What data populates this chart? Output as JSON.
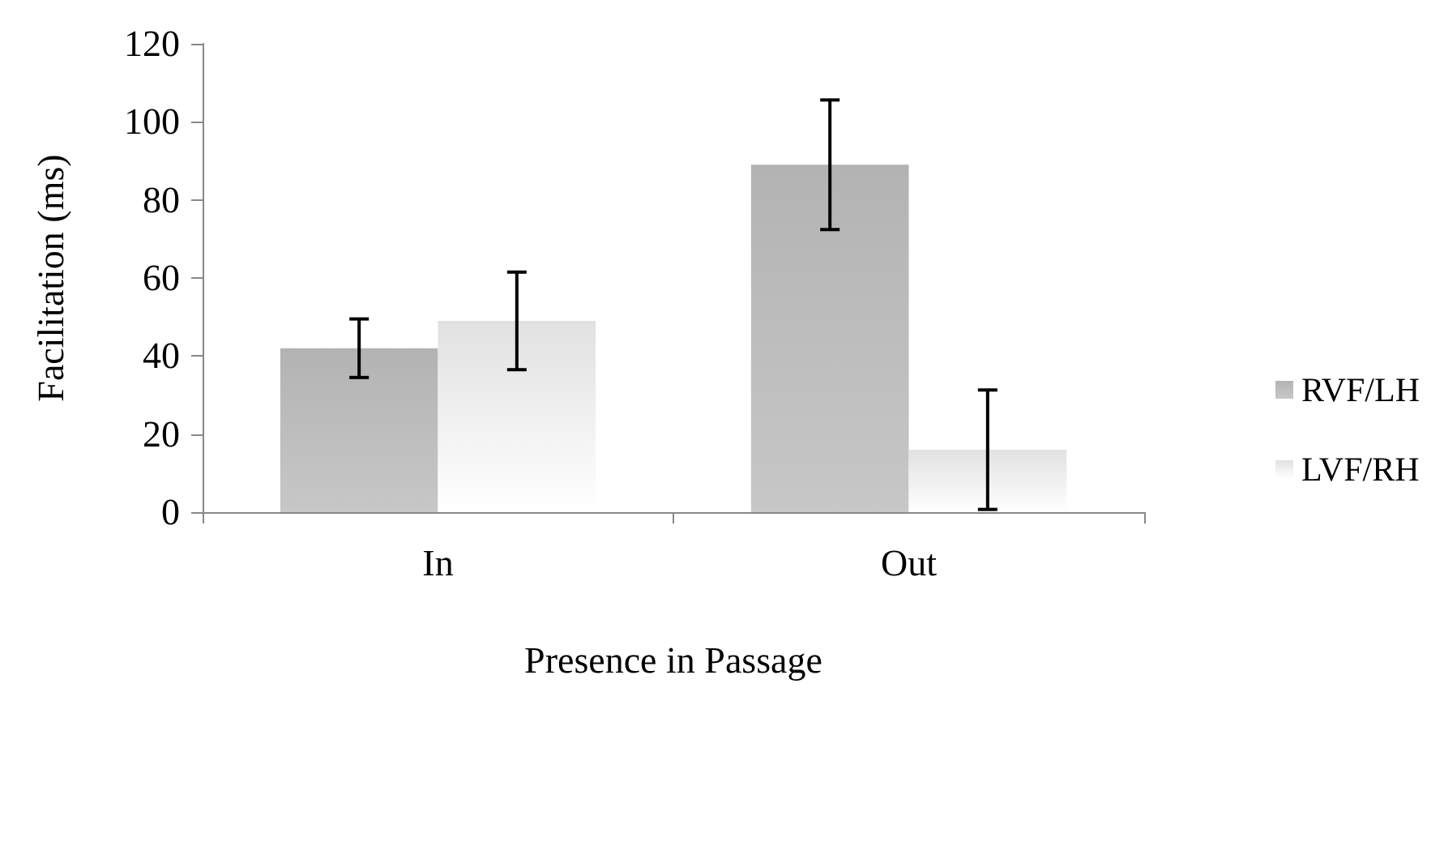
{
  "chart_data": {
    "type": "bar",
    "xlabel": "Presence in Passage",
    "ylabel": "Facilitation (ms)",
    "categories": [
      "In",
      "Out"
    ],
    "series": [
      {
        "name": "RVF/LH",
        "color": "#a6a6a6",
        "values": [
          42,
          89
        ],
        "errors": [
          7.5,
          16.6
        ]
      },
      {
        "name": "LVF/RH",
        "color": "#dcdcdc",
        "values": [
          49,
          16
        ],
        "errors": [
          12.5,
          15.3
        ]
      }
    ],
    "ylim": [
      0,
      120
    ],
    "yticks": [
      0,
      20,
      40,
      60,
      80,
      100,
      120
    ],
    "grid": false,
    "legend": "right"
  }
}
